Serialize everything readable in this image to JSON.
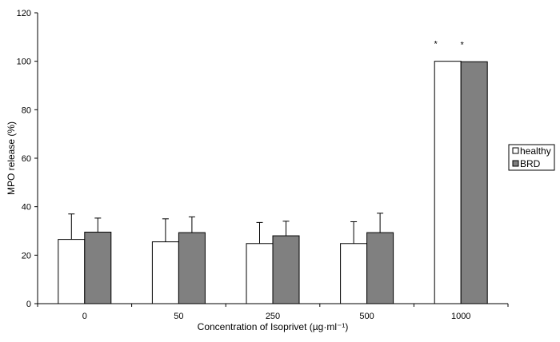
{
  "chart_data": {
    "type": "bar",
    "title": "",
    "xlabel": "Concentration of Isoprivet (µg·ml⁻¹)",
    "ylabel": "MPO release (%)",
    "ylim": [
      0,
      120
    ],
    "yticks": [
      0,
      20,
      40,
      60,
      80,
      100,
      120
    ],
    "categories": [
      "0",
      "50",
      "250",
      "500",
      "1000"
    ],
    "series": [
      {
        "name": "healthy",
        "color": "#ffffff",
        "values": [
          26.5,
          25.5,
          24.8,
          24.8,
          100
        ],
        "errors": [
          10.5,
          9.5,
          8.7,
          9.0,
          0
        ]
      },
      {
        "name": "BRD",
        "color": "#808080",
        "values": [
          29.5,
          29.3,
          28.0,
          29.3,
          99.8
        ],
        "errors": [
          5.8,
          6.5,
          6.0,
          8.0,
          0
        ]
      }
    ],
    "annotations": [
      {
        "category": "1000",
        "series": "healthy",
        "text": "*"
      },
      {
        "category": "1000",
        "series": "BRD",
        "text": "*"
      }
    ],
    "grid": false,
    "legend": "right"
  }
}
